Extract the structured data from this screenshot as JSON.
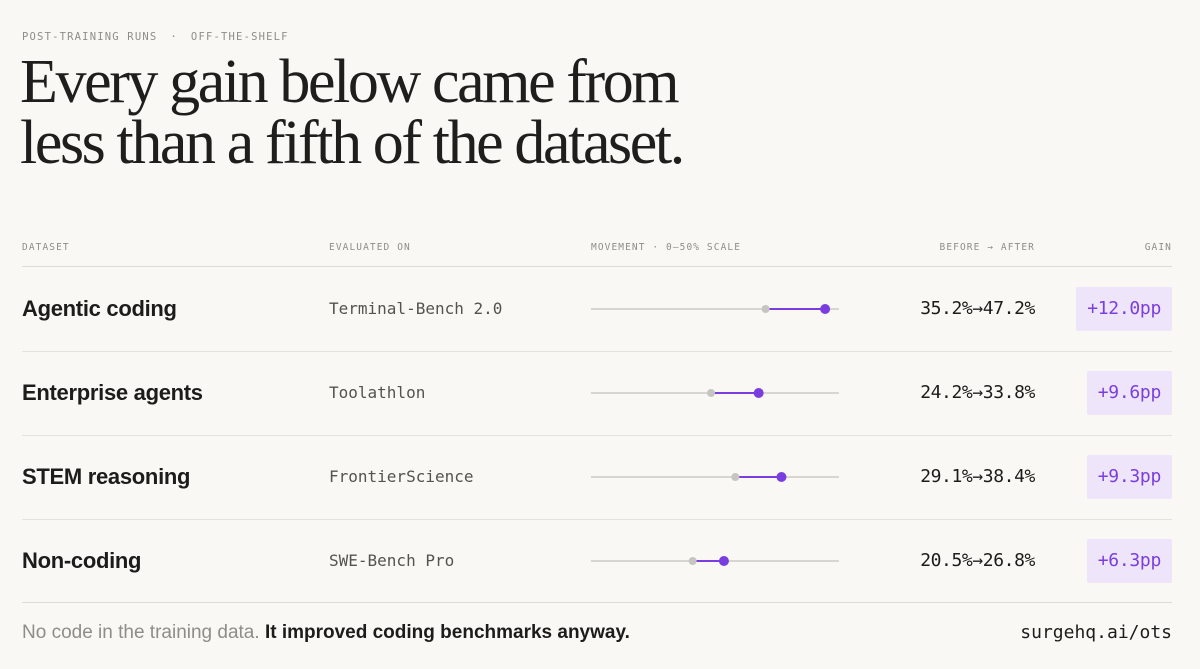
{
  "eyebrow": {
    "left": "POST-TRAINING RUNS",
    "separator": "·",
    "right": "OFF-THE-SHELF"
  },
  "headline": {
    "line1": "Every gain below came from",
    "line2": "less than a fifth of the dataset."
  },
  "columns": {
    "dataset": "DATASET",
    "evaluated_on": "EVALUATED ON",
    "movement": "MOVEMENT · 0–50% SCALE",
    "before_after": "BEFORE → AFTER",
    "gain": "GAIN"
  },
  "colors": {
    "background": "#f9f8f4",
    "accent": "#7a3ee0",
    "before_dot": "#c7c5bf",
    "track": "#d8d6d1",
    "gain_badge_bg": "#efe5fb"
  },
  "chart_data": {
    "type": "table",
    "scale": [
      0,
      50
    ],
    "unit": "%",
    "rows": [
      {
        "dataset": "Agentic coding",
        "benchmark": "Terminal-Bench 2.0",
        "before": 35.2,
        "after": 47.2,
        "before_after": "35.2%→47.2%",
        "gain": "+12.0pp"
      },
      {
        "dataset": "Enterprise agents",
        "benchmark": "Toolathlon",
        "before": 24.2,
        "after": 33.8,
        "before_after": "24.2%→33.8%",
        "gain": "+9.6pp"
      },
      {
        "dataset": "STEM reasoning",
        "benchmark": "FrontierScience",
        "before": 29.1,
        "after": 38.4,
        "before_after": "29.1%→38.4%",
        "gain": "+9.3pp"
      },
      {
        "dataset": "Non-coding",
        "benchmark": "SWE-Bench Pro",
        "before": 20.5,
        "after": 26.8,
        "before_after": "20.5%→26.8%",
        "gain": "+6.3pp"
      }
    ]
  },
  "footer": {
    "note_plain": "No code in the training data. ",
    "note_bold": "It improved coding benchmarks anyway.",
    "link": "surgehq.ai/ots"
  }
}
